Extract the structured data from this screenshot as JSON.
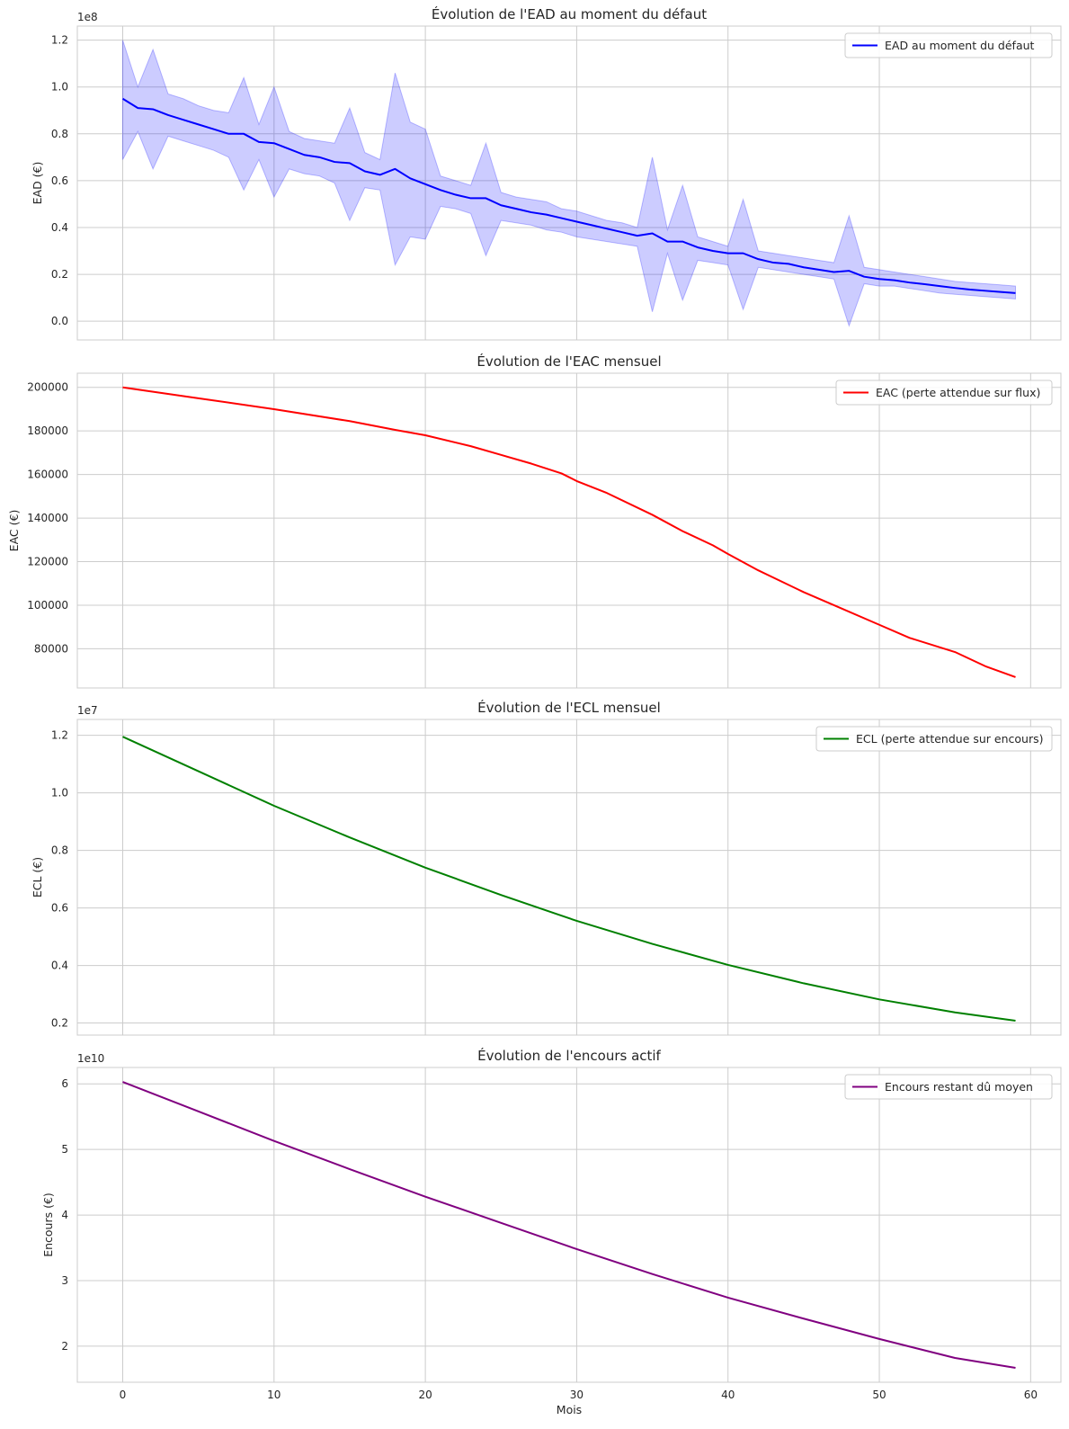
{
  "chart_data": [
    {
      "type": "line",
      "title": "Évolution de l'EAD au moment du défaut",
      "xlabel": "",
      "ylabel": "EAD (€)",
      "offset_label": "1e8",
      "xlim": [
        -3,
        62
      ],
      "ylim": [
        -0.08,
        1.26
      ],
      "xticks": [
        0,
        10,
        20,
        30,
        40,
        50,
        60
      ],
      "xtick_labels_visible": false,
      "yticks": [
        0.0,
        0.2,
        0.4,
        0.6,
        0.8,
        1.0,
        1.2
      ],
      "ytick_labels": [
        "0.0",
        "0.2",
        "0.4",
        "0.6",
        "0.8",
        "1.0",
        "1.2"
      ],
      "grid": true,
      "legend": "top-right",
      "series": [
        {
          "name": "EAD au moment du défaut",
          "color": "#0000ff",
          "x": [
            0,
            1,
            2,
            3,
            4,
            5,
            6,
            7,
            8,
            9,
            10,
            11,
            12,
            13,
            14,
            15,
            16,
            17,
            18,
            19,
            20,
            21,
            22,
            23,
            24,
            25,
            26,
            27,
            28,
            29,
            30,
            31,
            32,
            33,
            34,
            35,
            36,
            37,
            38,
            39,
            40,
            41,
            42,
            43,
            44,
            45,
            46,
            47,
            48,
            49,
            50,
            51,
            52,
            53,
            54,
            55,
            56,
            57,
            58,
            59
          ],
          "y": [
            0.95,
            0.91,
            0.905,
            0.88,
            0.86,
            0.84,
            0.82,
            0.8,
            0.8,
            0.765,
            0.76,
            0.735,
            0.71,
            0.7,
            0.68,
            0.675,
            0.64,
            0.625,
            0.65,
            0.61,
            0.585,
            0.56,
            0.54,
            0.525,
            0.525,
            0.495,
            0.48,
            0.465,
            0.455,
            0.44,
            0.425,
            0.41,
            0.395,
            0.38,
            0.365,
            0.375,
            0.34,
            0.34,
            0.315,
            0.3,
            0.29,
            0.29,
            0.265,
            0.25,
            0.245,
            0.23,
            0.22,
            0.21,
            0.215,
            0.19,
            0.18,
            0.175,
            0.165,
            0.158,
            0.15,
            0.142,
            0.135,
            0.13,
            0.125,
            0.12
          ],
          "band_upper": [
            1.2,
            1.0,
            1.16,
            0.97,
            0.95,
            0.92,
            0.9,
            0.89,
            1.04,
            0.84,
            1.0,
            0.81,
            0.78,
            0.77,
            0.76,
            0.91,
            0.72,
            0.69,
            1.06,
            0.85,
            0.82,
            0.62,
            0.6,
            0.58,
            0.76,
            0.55,
            0.53,
            0.52,
            0.51,
            0.48,
            0.47,
            0.45,
            0.43,
            0.42,
            0.4,
            0.7,
            0.39,
            0.58,
            0.36,
            0.34,
            0.32,
            0.52,
            0.3,
            0.29,
            0.28,
            0.27,
            0.26,
            0.25,
            0.45,
            0.23,
            0.22,
            0.21,
            0.2,
            0.19,
            0.18,
            0.17,
            0.165,
            0.16,
            0.155,
            0.15
          ],
          "band_lower": [
            0.69,
            0.81,
            0.65,
            0.79,
            0.77,
            0.75,
            0.73,
            0.7,
            0.56,
            0.69,
            0.53,
            0.65,
            0.63,
            0.62,
            0.59,
            0.43,
            0.57,
            0.56,
            0.24,
            0.36,
            0.35,
            0.49,
            0.48,
            0.46,
            0.28,
            0.43,
            0.42,
            0.41,
            0.39,
            0.38,
            0.36,
            0.35,
            0.34,
            0.33,
            0.32,
            0.04,
            0.29,
            0.09,
            0.26,
            0.25,
            0.24,
            0.05,
            0.23,
            0.22,
            0.21,
            0.2,
            0.19,
            0.18,
            -0.02,
            0.16,
            0.15,
            0.15,
            0.14,
            0.13,
            0.12,
            0.115,
            0.11,
            0.105,
            0.1,
            0.095
          ]
        }
      ]
    },
    {
      "type": "line",
      "title": "Évolution de l'EAC mensuel",
      "xlabel": "",
      "ylabel": "EAC (€)",
      "offset_label": "",
      "xlim": [
        -3,
        62
      ],
      "ylim": [
        62000,
        206500
      ],
      "xticks": [
        0,
        10,
        20,
        30,
        40,
        50,
        60
      ],
      "xtick_labels_visible": false,
      "yticks": [
        80000,
        100000,
        120000,
        140000,
        160000,
        180000,
        200000
      ],
      "ytick_labels": [
        "80000",
        "100000",
        "120000",
        "140000",
        "160000",
        "180000",
        "200000"
      ],
      "grid": true,
      "legend": "top-right",
      "series": [
        {
          "name": "EAC (perte attendue sur flux)",
          "color": "#ff0000",
          "x": [
            0,
            5,
            10,
            15,
            18,
            20,
            23,
            25,
            27,
            29,
            30,
            32,
            35,
            37,
            39,
            40,
            42,
            45,
            47,
            50,
            52,
            55,
            57,
            59
          ],
          "y": [
            200000,
            195000,
            190000,
            184500,
            180500,
            178000,
            173000,
            169000,
            165000,
            160500,
            157000,
            151500,
            141500,
            134000,
            127500,
            123500,
            116000,
            106000,
            100000,
            91000,
            85000,
            78500,
            72000,
            67000
          ]
        }
      ]
    },
    {
      "type": "line",
      "title": "Évolution de l'ECL mensuel",
      "xlabel": "",
      "ylabel": "ECL (€)",
      "offset_label": "1e7",
      "xlim": [
        -3,
        62
      ],
      "ylim": [
        0.158,
        1.255
      ],
      "xticks": [
        0,
        10,
        20,
        30,
        40,
        50,
        60
      ],
      "xtick_labels_visible": false,
      "yticks": [
        0.2,
        0.4,
        0.6,
        0.8,
        1.0,
        1.2
      ],
      "ytick_labels": [
        "0.2",
        "0.4",
        "0.6",
        "0.8",
        "1.0",
        "1.2"
      ],
      "grid": true,
      "legend": "top-right",
      "series": [
        {
          "name": "ECL (perte attendue sur encours)",
          "color": "#008000",
          "x": [
            0,
            5,
            10,
            15,
            20,
            25,
            30,
            35,
            40,
            45,
            50,
            55,
            59
          ],
          "y": [
            1.195,
            1.075,
            0.955,
            0.845,
            0.74,
            0.645,
            0.555,
            0.475,
            0.402,
            0.338,
            0.282,
            0.237,
            0.208
          ]
        }
      ]
    },
    {
      "type": "line",
      "title": "Évolution de l'encours actif",
      "xlabel": "Mois",
      "ylabel": "Encours (€)",
      "offset_label": "1e10",
      "xlim": [
        -3,
        62
      ],
      "ylim": [
        1.45,
        6.25
      ],
      "xticks": [
        0,
        10,
        20,
        30,
        40,
        50,
        60
      ],
      "xtick_labels_visible": true,
      "xtick_labels": [
        "0",
        "10",
        "20",
        "30",
        "40",
        "50",
        "60"
      ],
      "yticks": [
        2,
        3,
        4,
        5,
        6
      ],
      "ytick_labels": [
        "2",
        "3",
        "4",
        "5",
        "6"
      ],
      "grid": true,
      "legend": "top-right",
      "series": [
        {
          "name": "Encours restant dû moyen",
          "color": "#800080",
          "x": [
            0,
            5,
            10,
            15,
            20,
            25,
            30,
            35,
            40,
            45,
            50,
            55,
            59
          ],
          "y": [
            6.03,
            5.58,
            5.13,
            4.7,
            4.28,
            3.88,
            3.48,
            3.1,
            2.74,
            2.42,
            2.11,
            1.82,
            1.67
          ]
        }
      ]
    }
  ]
}
